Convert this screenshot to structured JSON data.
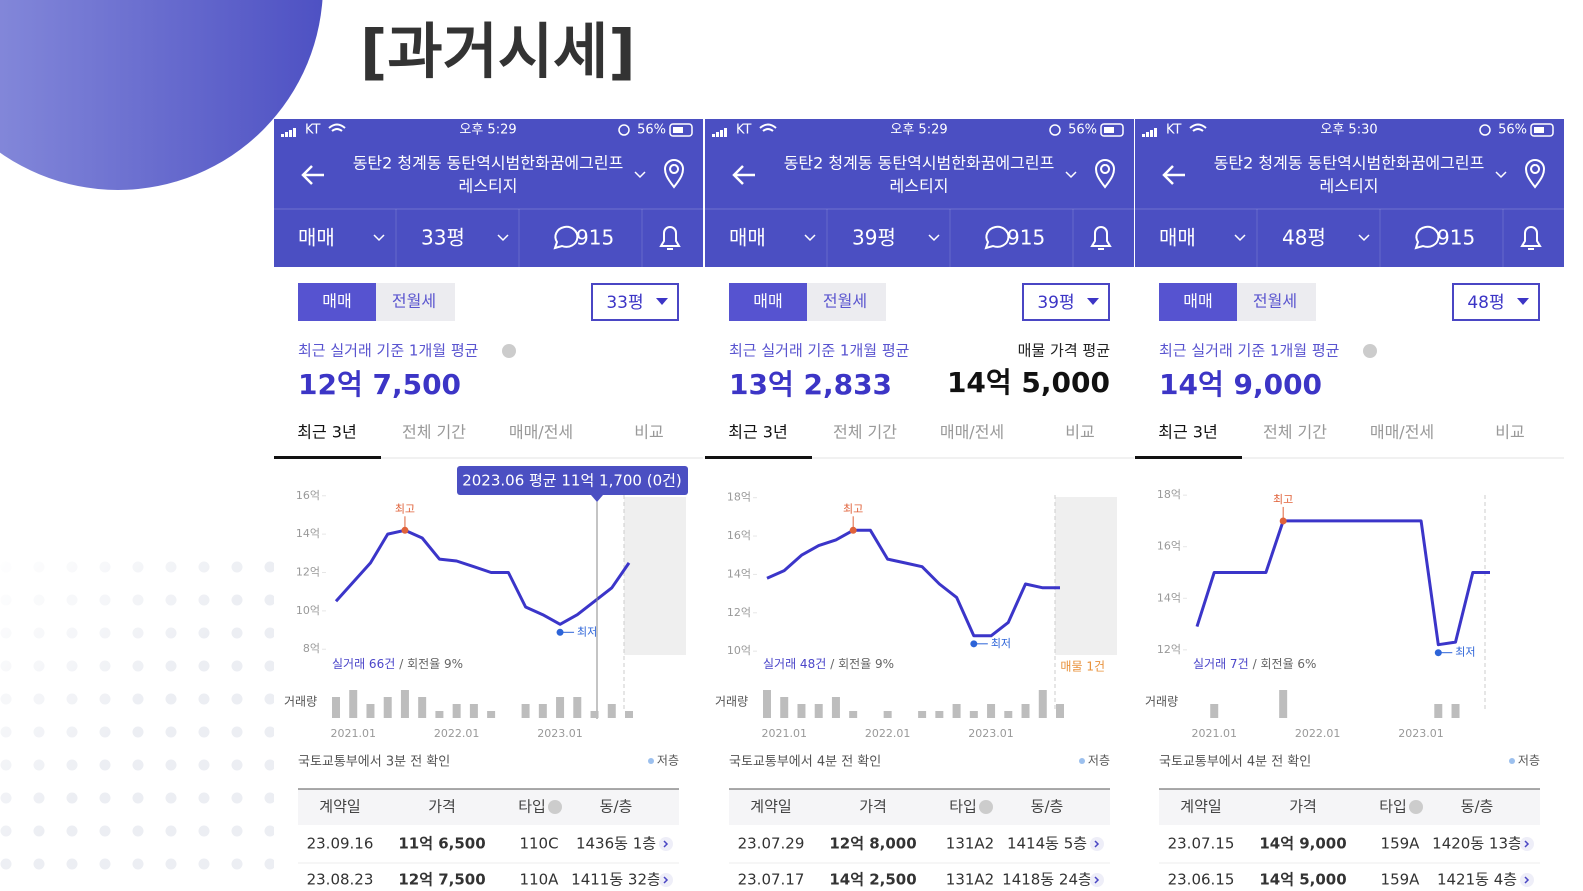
{
  "title": "[과거시세]",
  "panels": [
    {
      "status": {
        "carrier": "KT",
        "time": "오후 5:29",
        "battery": "56%"
      },
      "name_lines": [
        "동탄2 청계동 동탄역시범한화꿈에그린프",
        "레스티지"
      ],
      "nav": {
        "deal": "매매",
        "size": "33평",
        "comments": "915"
      },
      "toggle": [
        "매매",
        "전월세"
      ],
      "size_select": "33평",
      "avg_label": "최근 실거래 기준 1개월 평균",
      "avg_price": "12억 7,500",
      "tabs": [
        "최근 3년",
        "전체 기간",
        "매매/전세",
        "비교"
      ],
      "chart": {
        "type": "line",
        "color": "#3b35c9",
        "categories": [
          null,
          "2021.01",
          null,
          null,
          null,
          null,
          null,
          "2022.01",
          null,
          null,
          null,
          null,
          null,
          "2023.01",
          null,
          null,
          null,
          null
        ],
        "values": [
          10.5,
          11.5,
          12.5,
          14.0,
          14.2,
          13.8,
          12.7,
          12.6,
          12.3,
          12.0,
          12.0,
          10.2,
          9.8,
          9.3,
          9.8,
          10.5,
          11.2,
          12.5
        ],
        "volume": [
          3,
          4,
          2,
          3,
          4,
          3,
          1,
          2,
          2,
          1,
          0,
          2,
          2,
          3,
          3,
          1,
          2,
          1
        ],
        "ylim": [
          7.7,
          16.3
        ],
        "yticks": [
          {
            "value": 8,
            "label": "8억"
          },
          {
            "value": 10,
            "label": "10억"
          },
          {
            "value": 12,
            "label": "12억"
          },
          {
            "value": 14,
            "label": "14억"
          },
          {
            "value": 16,
            "label": "16억"
          }
        ],
        "high_label": "최고",
        "low_label": "최저",
        "deals": "실거래 66건",
        "turnover": "/ 회전율 9%",
        "volume_label": "거래량",
        "tooltip": "2023.06 평균 11억 1,700 (0건)"
      },
      "source": "국토교통부에서 3분 전 확인",
      "legend": "저층",
      "table": {
        "header": [
          "계약일",
          "가격",
          "타입",
          "동/층"
        ],
        "rows": [
          [
            "23.09.16",
            "11억 6,500",
            "110C",
            "1436동 1층"
          ],
          [
            "23.08.23",
            "12억 7,500",
            "110A",
            "1411동 32층"
          ]
        ]
      }
    },
    {
      "status": {
        "carrier": "KT",
        "time": "오후 5:29",
        "battery": "56%"
      },
      "name_lines": [
        "동탄2 청계동 동탄역시범한화꿈에그린프",
        "레스티지"
      ],
      "nav": {
        "deal": "매매",
        "size": "39평",
        "comments": "915"
      },
      "toggle": [
        "매매",
        "전월세"
      ],
      "size_select": "39평",
      "avg_label": "최근 실거래 기준 1개월 평균",
      "avg_price": "13억 2,833",
      "listing_label": "매물 가격 평균",
      "listing_price": "14억 5,000",
      "tabs": [
        "최근 3년",
        "전체 기간",
        "매매/전세",
        "비교"
      ],
      "chart": {
        "type": "line",
        "color": "#3b35c9",
        "categories": [
          null,
          "2021.01",
          null,
          null,
          null,
          null,
          null,
          "2022.01",
          null,
          null,
          null,
          null,
          null,
          "2023.01",
          null,
          null,
          null,
          null
        ],
        "values": [
          13.8,
          14.2,
          15.0,
          15.5,
          15.8,
          16.3,
          16.3,
          14.8,
          14.6,
          14.4,
          13.5,
          12.8,
          10.8,
          10.8,
          11.5,
          13.5,
          13.3,
          13.3
        ],
        "volume": [
          4,
          3,
          2,
          2,
          3,
          1,
          0,
          1,
          0,
          1,
          1,
          2,
          1,
          2,
          1,
          2,
          4,
          2
        ],
        "ylim": [
          9.8,
          18.4
        ],
        "yticks": [
          {
            "value": 10,
            "label": "10억"
          },
          {
            "value": 12,
            "label": "12억"
          },
          {
            "value": 14,
            "label": "14억"
          },
          {
            "value": 16,
            "label": "16억"
          },
          {
            "value": 18,
            "label": "18억"
          }
        ],
        "high_label": "최고",
        "low_label": "최저",
        "deals": "실거래 48건",
        "turnover": "/ 회전율 9%",
        "volume_label": "거래량",
        "listing_count": "매물 1건"
      },
      "source": "국토교통부에서 4분 전 확인",
      "legend": "저층",
      "table": {
        "header": [
          "계약일",
          "가격",
          "타입",
          "동/층"
        ],
        "rows": [
          [
            "23.07.29",
            "12억 8,000",
            "131A2",
            "1414동 5층"
          ],
          [
            "23.07.17",
            "14억 2,500",
            "131A2",
            "1418동 24층"
          ]
        ]
      }
    },
    {
      "status": {
        "carrier": "KT",
        "time": "오후 5:30",
        "battery": "56%"
      },
      "name_lines": [
        "동탄2 청계동 동탄역시범한화꿈에그린프",
        "레스티지"
      ],
      "nav": {
        "deal": "매매",
        "size": "48평",
        "comments": "915"
      },
      "toggle": [
        "매매",
        "전월세"
      ],
      "size_select": "48평",
      "avg_label": "최근 실거래 기준 1개월 평균",
      "avg_price": "14억 9,000",
      "tabs": [
        "최근 3년",
        "전체 기간",
        "매매/전세",
        "비교"
      ],
      "chart": {
        "type": "line",
        "color": "#3b35c9",
        "categories": [
          null,
          "2021.01",
          null,
          null,
          null,
          null,
          null,
          "2022.01",
          null,
          null,
          null,
          null,
          null,
          "2023.01",
          null,
          null,
          null,
          null
        ],
        "values": [
          12.9,
          15.0,
          15.0,
          15.0,
          15.0,
          17.0,
          17.0,
          17.0,
          17.0,
          17.0,
          17.0,
          17.0,
          17.0,
          17.0,
          12.2,
          12.3,
          15.0,
          15.0
        ],
        "volume": [
          0,
          2,
          0,
          0,
          0,
          4,
          0,
          0,
          0,
          0,
          0,
          0,
          0,
          0,
          2,
          2,
          0,
          0
        ],
        "ylim": [
          11.8,
          18.2
        ],
        "yticks": [
          {
            "value": 12,
            "label": "12억"
          },
          {
            "value": 14,
            "label": "14억"
          },
          {
            "value": 16,
            "label": "16억"
          },
          {
            "value": 18,
            "label": "18억"
          }
        ],
        "high_label": "최고",
        "low_label": "최저",
        "deals": "실거래 7건",
        "turnover": "/ 회전율 6%",
        "volume_label": "거래량"
      },
      "source": "국토교통부에서 4분 전 확인",
      "legend": "저층",
      "table": {
        "header": [
          "계약일",
          "가격",
          "타입",
          "동/층"
        ],
        "rows": [
          [
            "23.07.15",
            "14억 9,000",
            "159A",
            "1420동 13층"
          ],
          [
            "23.06.15",
            "14억 5,000",
            "159A",
            "1421동 4층"
          ]
        ]
      }
    }
  ]
}
